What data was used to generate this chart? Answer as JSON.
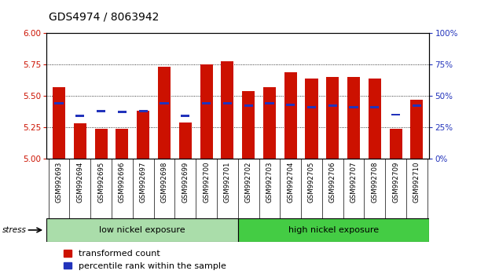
{
  "title": "GDS4974 / 8063942",
  "samples": [
    "GSM992693",
    "GSM992694",
    "GSM992695",
    "GSM992696",
    "GSM992697",
    "GSM992698",
    "GSM992699",
    "GSM992700",
    "GSM992701",
    "GSM992702",
    "GSM992703",
    "GSM992704",
    "GSM992705",
    "GSM992706",
    "GSM992707",
    "GSM992708",
    "GSM992709",
    "GSM992710"
  ],
  "red_values": [
    5.57,
    5.28,
    5.24,
    5.24,
    5.38,
    5.73,
    5.29,
    5.75,
    5.78,
    5.54,
    5.57,
    5.69,
    5.64,
    5.65,
    5.65,
    5.64,
    5.24,
    5.47
  ],
  "blue_values": [
    5.44,
    5.34,
    5.38,
    5.37,
    5.38,
    5.44,
    5.34,
    5.44,
    5.44,
    5.42,
    5.44,
    5.43,
    5.41,
    5.42,
    5.41,
    5.41,
    5.35,
    5.42
  ],
  "ymin": 5.0,
  "ymax": 6.0,
  "yticks": [
    5.0,
    5.25,
    5.5,
    5.75,
    6.0
  ],
  "right_yticks": [
    0,
    25,
    50,
    75,
    100
  ],
  "right_yticklabels": [
    "0%",
    "25%",
    "50%",
    "75%",
    "100%"
  ],
  "group1_label": "low nickel exposure",
  "group2_label": "high nickel exposure",
  "group1_count": 9,
  "stress_label": "stress",
  "legend_red": "transformed count",
  "legend_blue": "percentile rank within the sample",
  "bar_color": "#cc1100",
  "blue_color": "#2233bb",
  "group1_color": "#aaddaa",
  "group2_color": "#44cc44",
  "bg_color": "#cccccc",
  "title_fontsize": 10,
  "tick_fontsize": 7.5,
  "legend_fontsize": 8
}
